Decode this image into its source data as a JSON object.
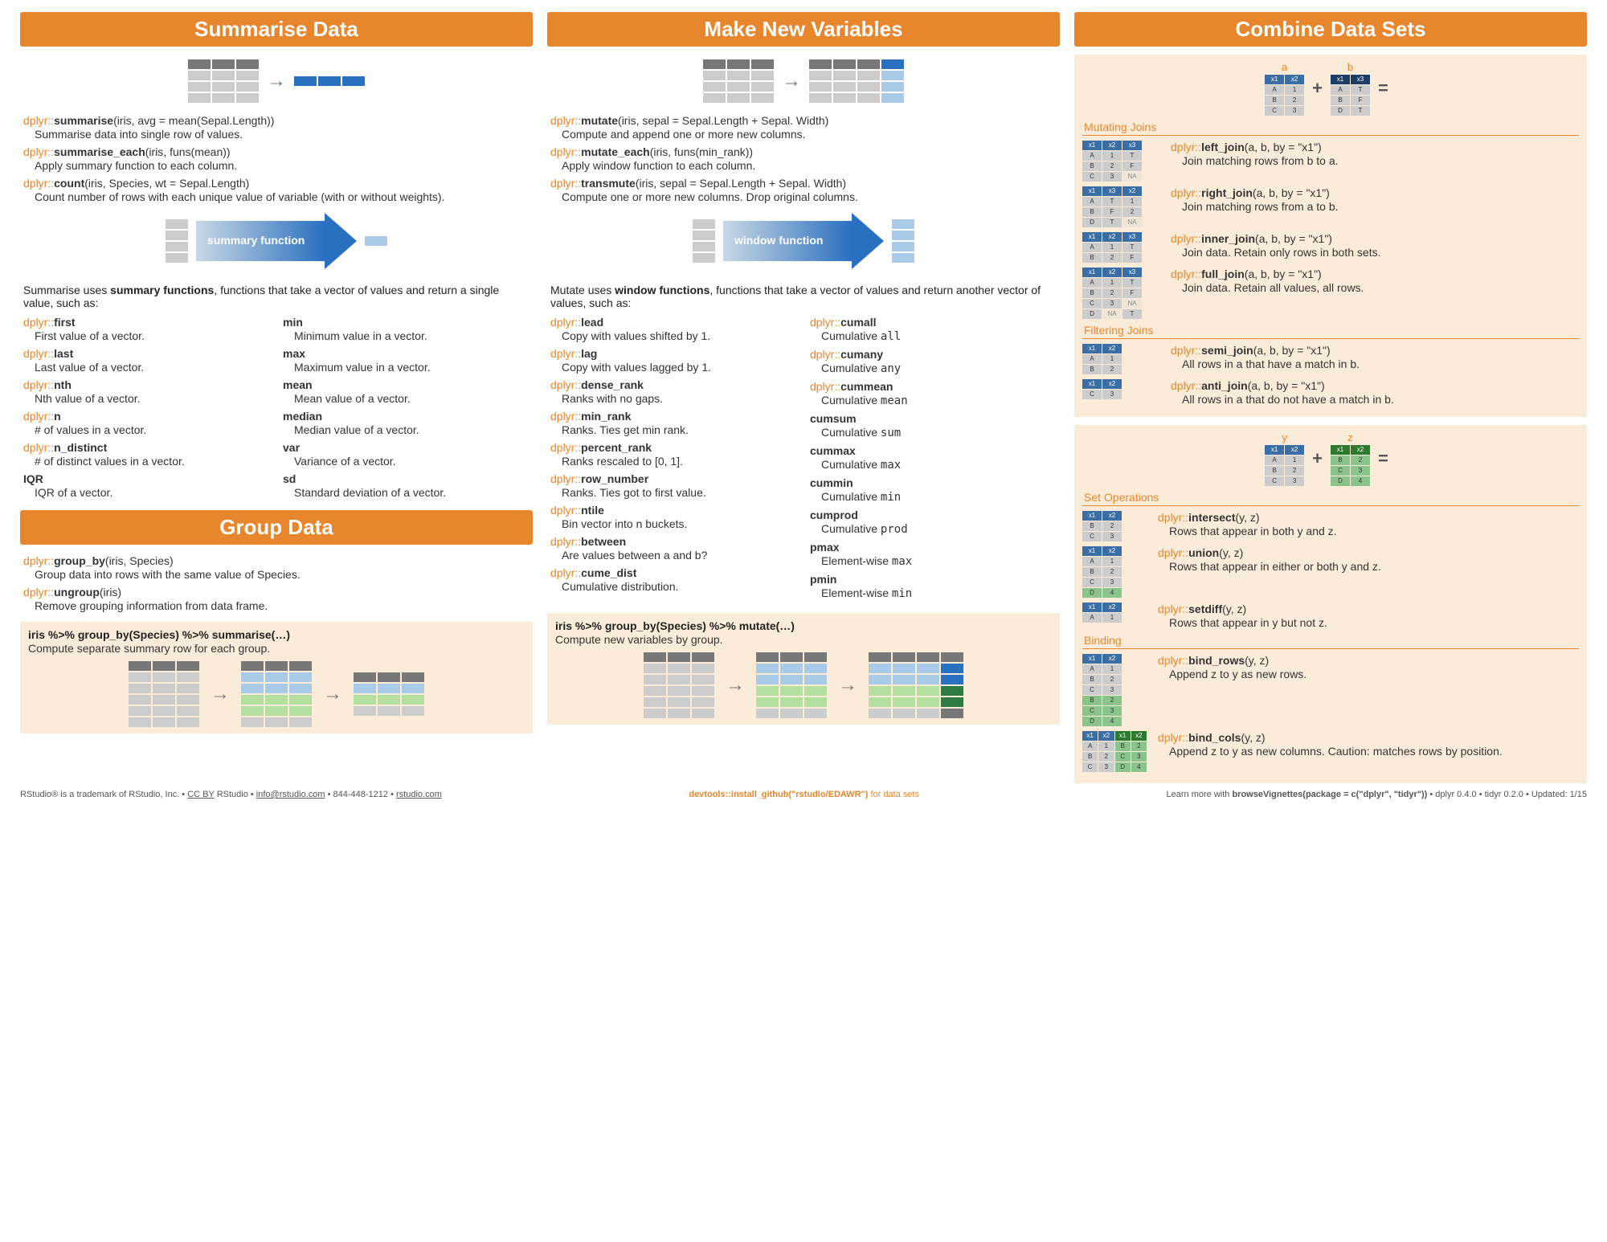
{
  "colors": {
    "orange": "#e8862d",
    "beige": "#fbecd9",
    "blue": "#2a70c0",
    "gray": "#bbb",
    "lightblue": "#a9cbe8",
    "green": "#b5df9f"
  },
  "headers": {
    "summarise": "Summarise Data",
    "makenew": "Make New Variables",
    "combine": "Combine Data Sets",
    "group": "Group Data"
  },
  "summarise": {
    "fns": [
      {
        "pkg": "dplyr::",
        "fn": "summarise",
        "args": "(iris, avg = mean(Sepal.Length))",
        "desc": "Summarise data into single row of values."
      },
      {
        "pkg": "dplyr::",
        "fn": "summarise_each",
        "args": "(iris, funs(mean))",
        "desc": "Apply summary function to each column."
      },
      {
        "pkg": "dplyr::",
        "fn": "count",
        "args": "(iris, Species, wt = Sepal.Length)",
        "desc": "Count number of rows with each unique value of variable (with or without weights)."
      }
    ],
    "arrow_label": "summary function",
    "body": "Summarise uses <b>summary functions</b>, functions that take a vector of values and return a single value, such as:",
    "sumfns_left": [
      {
        "pkg": "dplyr::",
        "fn": "first",
        "desc": "First value of a vector."
      },
      {
        "pkg": "dplyr::",
        "fn": "last",
        "desc": "Last value of a vector."
      },
      {
        "pkg": "dplyr::",
        "fn": "nth",
        "desc": "Nth value of a vector."
      },
      {
        "pkg": "dplyr::",
        "fn": "n",
        "desc": "# of values in a vector."
      },
      {
        "pkg": "dplyr::",
        "fn": "n_distinct",
        "desc": "# of distinct values in a vector."
      },
      {
        "pkg": "",
        "fn": "IQR",
        "desc": "IQR of a vector."
      }
    ],
    "sumfns_right": [
      {
        "pkg": "",
        "fn": "min",
        "desc": "Minimum value in a vector."
      },
      {
        "pkg": "",
        "fn": "max",
        "desc": "Maximum value in a vector."
      },
      {
        "pkg": "",
        "fn": "mean",
        "desc": "Mean value of a vector."
      },
      {
        "pkg": "",
        "fn": "median",
        "desc": "Median value of a vector."
      },
      {
        "pkg": "",
        "fn": "var",
        "desc": "Variance of a vector."
      },
      {
        "pkg": "",
        "fn": "sd",
        "desc": "Standard deviation of a vector."
      }
    ]
  },
  "group": {
    "fns": [
      {
        "pkg": "dplyr::",
        "fn": "group_by",
        "args": "(iris, Species)",
        "desc": "Group data into rows with the same value of Species."
      },
      {
        "pkg": "dplyr::",
        "fn": "ungroup",
        "args": "(iris)",
        "desc": "Remove grouping information from data frame."
      }
    ],
    "pipe_label": "iris  %>%  group_by(Species)  %>%  summarise(…)",
    "pipe_desc": "Compute separate summary row for each group."
  },
  "makenew": {
    "fns": [
      {
        "pkg": "dplyr::",
        "fn": "mutate",
        "args": "(iris, sepal = Sepal.Length + Sepal. Width)",
        "desc": "Compute and append one or more new columns."
      },
      {
        "pkg": "dplyr::",
        "fn": "mutate_each",
        "args": "(iris, funs(min_rank))",
        "desc": "Apply window function to each column."
      },
      {
        "pkg": "dplyr::",
        "fn": "transmute",
        "args": "(iris, sepal = Sepal.Length + Sepal. Width)",
        "desc": "Compute one or more new columns. Drop original columns."
      }
    ],
    "arrow_label": "window function",
    "body": "Mutate uses <b>window functions</b>, functions that take a vector of values and return another vector of values, such as:",
    "winfns_left": [
      {
        "pkg": "dplyr::",
        "fn": "lead",
        "desc": "Copy with values shifted by 1."
      },
      {
        "pkg": "dplyr::",
        "fn": "lag",
        "desc": "Copy with values lagged by 1."
      },
      {
        "pkg": "dplyr::",
        "fn": "dense_rank",
        "desc": "Ranks with no gaps."
      },
      {
        "pkg": "dplyr::",
        "fn": "min_rank",
        "desc": "Ranks. Ties get min rank."
      },
      {
        "pkg": "dplyr::",
        "fn": "percent_rank",
        "desc": "Ranks rescaled to [0, 1]."
      },
      {
        "pkg": "dplyr::",
        "fn": "row_number",
        "desc": "Ranks. Ties got to first value."
      },
      {
        "pkg": "dplyr::",
        "fn": "ntile",
        "desc": "Bin vector into n buckets."
      },
      {
        "pkg": "dplyr::",
        "fn": "between",
        "desc": "Are values between a and b?"
      },
      {
        "pkg": "dplyr::",
        "fn": "cume_dist",
        "desc": "Cumulative distribution."
      }
    ],
    "winfns_right": [
      {
        "pkg": "dplyr::",
        "fn": "cumall",
        "desc": "Cumulative <span class='mono'>all</span>"
      },
      {
        "pkg": "dplyr::",
        "fn": "cumany",
        "desc": "Cumulative <span class='mono'>any</span>"
      },
      {
        "pkg": "dplyr::",
        "fn": "cummean",
        "desc": "Cumulative <span class='mono'>mean</span>"
      },
      {
        "pkg": "",
        "fn": "cumsum",
        "desc": "Cumulative <span class='mono'>sum</span>"
      },
      {
        "pkg": "",
        "fn": "cummax",
        "desc": "Cumulative <span class='mono'>max</span>"
      },
      {
        "pkg": "",
        "fn": "cummin",
        "desc": "Cumulative <span class='mono'>min</span>"
      },
      {
        "pkg": "",
        "fn": "cumprod",
        "desc": "Cumulative <span class='mono'>prod</span>"
      },
      {
        "pkg": "",
        "fn": "pmax",
        "desc": "Element-wise <span class='mono'>max</span>"
      },
      {
        "pkg": "",
        "fn": "pmin",
        "desc": "Element-wise <span class='mono'>min</span>"
      }
    ],
    "pipe_label": "iris  %>%  group_by(Species)  %>%  mutate(…)",
    "pipe_desc": "Compute new variables by group."
  },
  "combine": {
    "header_a": "a",
    "header_b": "b",
    "table_a": {
      "headers": [
        "x1",
        "x2"
      ],
      "rows": [
        [
          "A",
          "1"
        ],
        [
          "B",
          "2"
        ],
        [
          "C",
          "3"
        ]
      ]
    },
    "table_b": {
      "headers": [
        "x1",
        "x3"
      ],
      "rows": [
        [
          "A",
          "T"
        ],
        [
          "B",
          "F"
        ],
        [
          "D",
          "T"
        ]
      ]
    },
    "mutating_label": "Mutating Joins",
    "mutating": [
      {
        "pkg": "dplyr::",
        "fn": "left_join",
        "args": "(a, b, by = \"x1\")",
        "desc": "Join matching rows from b to a."
      },
      {
        "pkg": "dplyr::",
        "fn": "right_join",
        "args": "(a, b, by = \"x1\")",
        "desc": "Join matching rows from a to b."
      },
      {
        "pkg": "dplyr::",
        "fn": "inner_join",
        "args": "(a, b, by = \"x1\")",
        "desc": "Join data. Retain only rows in both sets."
      },
      {
        "pkg": "dplyr::",
        "fn": "full_join",
        "args": "(a, b, by = \"x1\")",
        "desc": "Join data. Retain all values, all rows."
      }
    ],
    "mutating_tables": [
      [
        [
          "x1",
          "x2",
          "x3"
        ],
        [
          "A",
          "1",
          "T"
        ],
        [
          "B",
          "2",
          "F"
        ],
        [
          "C",
          "3",
          "NA"
        ]
      ],
      [
        [
          "x1",
          "x3",
          "x2"
        ],
        [
          "A",
          "T",
          "1"
        ],
        [
          "B",
          "F",
          "2"
        ],
        [
          "D",
          "T",
          "NA"
        ]
      ],
      [
        [
          "x1",
          "x2",
          "x3"
        ],
        [
          "A",
          "1",
          "T"
        ],
        [
          "B",
          "2",
          "F"
        ]
      ],
      [
        [
          "x1",
          "x2",
          "x3"
        ],
        [
          "A",
          "1",
          "T"
        ],
        [
          "B",
          "2",
          "F"
        ],
        [
          "C",
          "3",
          "NA"
        ],
        [
          "D",
          "NA",
          "T"
        ]
      ]
    ],
    "filtering_label": "Filtering Joins",
    "filtering": [
      {
        "pkg": "dplyr::",
        "fn": "semi_join",
        "args": "(a, b, by = \"x1\")",
        "desc": "All rows in a that have a match in b."
      },
      {
        "pkg": "dplyr::",
        "fn": "anti_join",
        "args": "(a, b, by = \"x1\")",
        "desc": "All rows in a that do not have a match in b."
      }
    ],
    "filtering_tables": [
      [
        [
          "x1",
          "x2"
        ],
        [
          "A",
          "1"
        ],
        [
          "B",
          "2"
        ]
      ],
      [
        [
          "x1",
          "x2"
        ],
        [
          "C",
          "3"
        ]
      ]
    ],
    "header_y": "y",
    "header_z": "z",
    "table_y": {
      "headers": [
        "x1",
        "x2"
      ],
      "rows": [
        [
          "A",
          "1"
        ],
        [
          "B",
          "2"
        ],
        [
          "C",
          "3"
        ]
      ]
    },
    "table_z": {
      "headers": [
        "x1",
        "x2"
      ],
      "rows": [
        [
          "B",
          "2"
        ],
        [
          "C",
          "3"
        ],
        [
          "D",
          "4"
        ]
      ]
    },
    "setops_label": "Set Operations",
    "setops": [
      {
        "pkg": "dplyr::",
        "fn": "intersect",
        "args": "(y, z)",
        "desc": "Rows that appear in both y and z."
      },
      {
        "pkg": "dplyr::",
        "fn": "union",
        "args": "(y, z)",
        "desc": "Rows that appear in either or both y and z."
      },
      {
        "pkg": "dplyr::",
        "fn": "setdiff",
        "args": "(y, z)",
        "desc": "Rows that appear in y but not z."
      }
    ],
    "setops_tables": [
      [
        [
          "x1",
          "x2"
        ],
        [
          "B",
          "2"
        ],
        [
          "C",
          "3"
        ]
      ],
      [
        [
          "x1",
          "x2"
        ],
        [
          "A",
          "1"
        ],
        [
          "B",
          "2"
        ],
        [
          "C",
          "3"
        ],
        [
          "D",
          "4"
        ]
      ],
      [
        [
          "x1",
          "x2"
        ],
        [
          "A",
          "1"
        ]
      ]
    ],
    "binding_label": "Binding",
    "binding": [
      {
        "pkg": "dplyr::",
        "fn": "bind_rows",
        "args": "(y, z)",
        "desc": "Append z to y as new rows."
      },
      {
        "pkg": "dplyr::",
        "fn": "bind_cols",
        "args": "(y, z)",
        "desc": "Append z to y as new columns. Caution: matches rows by position."
      }
    ]
  },
  "footer": {
    "left": "RStudio® is a trademark of RStudio, Inc.  •  <u>CC BY</u> RStudio  •  <u>info@rstudio.com</u>  •  844-448-1212  •  <u>rstudio.com</u>",
    "mid": "<b>devtools::install_github(\"rstudio/EDAWR\")</b> for data sets",
    "right": "Learn more with <b>browseVignettes(package = c(\"dplyr\", \"tidyr\"))</b>  •  dplyr  0.4.0 •  tidyr  0.2.0  •  Updated: 1/15"
  }
}
